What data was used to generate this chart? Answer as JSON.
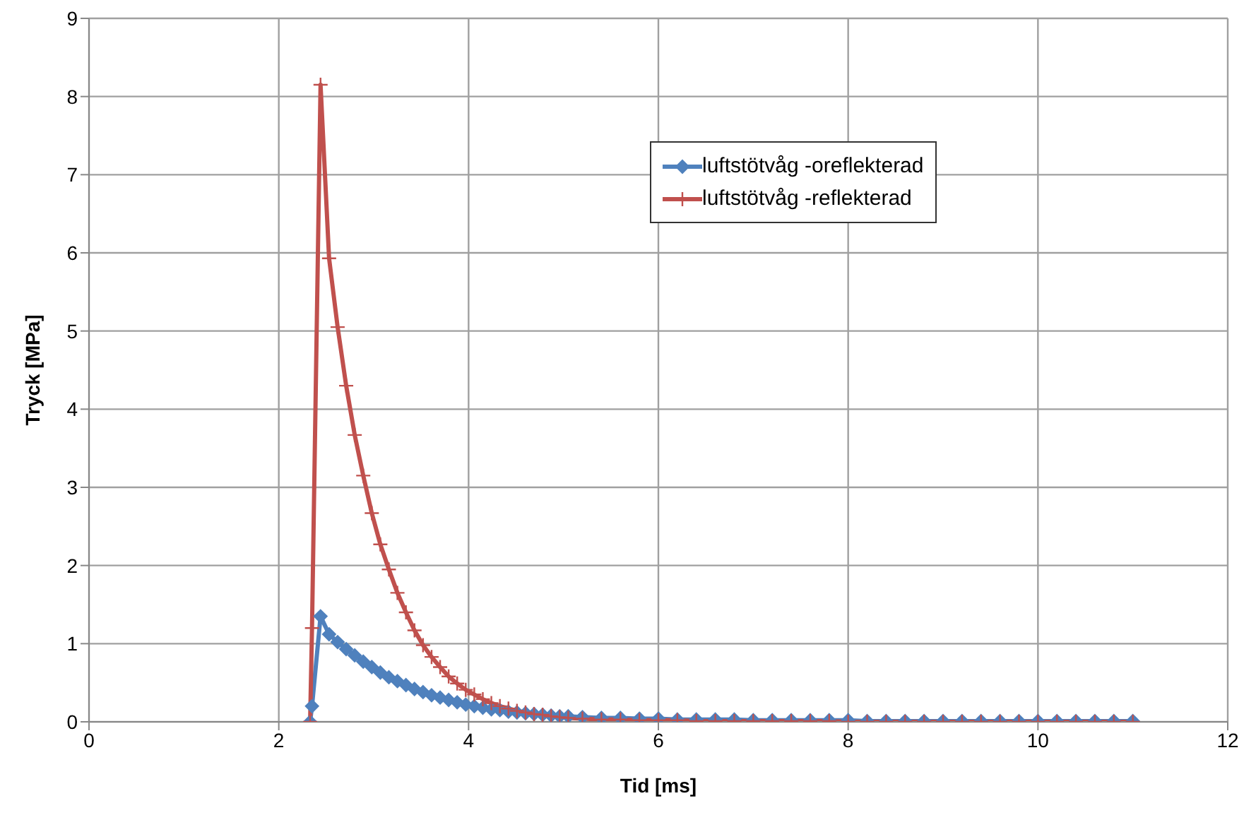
{
  "chart_data": {
    "type": "line",
    "xlabel": "Tid [ms]",
    "ylabel": "Tryck [MPa]",
    "xlim": [
      0,
      12
    ],
    "xticks": [
      0,
      2,
      4,
      6,
      8,
      10,
      12
    ],
    "ylim": [
      0,
      9
    ],
    "yticks": [
      0,
      1,
      2,
      3,
      4,
      5,
      6,
      7,
      8,
      9
    ],
    "grid": true,
    "legend": "top right",
    "line_style": "solid",
    "x": [
      2.33,
      2.35,
      2.44,
      2.53,
      2.62,
      2.71,
      2.8,
      2.89,
      2.98,
      3.07,
      3.16,
      3.25,
      3.34,
      3.43,
      3.52,
      3.61,
      3.7,
      3.79,
      3.88,
      3.97,
      4.06,
      4.15,
      4.24,
      4.33,
      4.42,
      4.51,
      4.6,
      4.69,
      4.78,
      4.87,
      4.96,
      5.05,
      5.2,
      5.4,
      5.6,
      5.8,
      6.0,
      6.2,
      6.4,
      6.6,
      6.8,
      7.0,
      7.2,
      7.4,
      7.6,
      7.8,
      8.0,
      8.2,
      8.4,
      8.6,
      8.8,
      9.0,
      9.2,
      9.4,
      9.6,
      9.8,
      10.0,
      10.2,
      10.4,
      10.6,
      10.8,
      11.0
    ],
    "series": [
      {
        "name": "luftstötvåg -oreflekterad",
        "color": "#4f81bd",
        "marker": "diamond",
        "values": [
          0,
          0.2,
          1.35,
          1.12,
          1.02,
          0.93,
          0.85,
          0.77,
          0.7,
          0.63,
          0.57,
          0.52,
          0.47,
          0.42,
          0.38,
          0.34,
          0.31,
          0.28,
          0.25,
          0.22,
          0.2,
          0.18,
          0.16,
          0.15,
          0.13,
          0.12,
          0.11,
          0.1,
          0.09,
          0.08,
          0.07,
          0.07,
          0.06,
          0.05,
          0.05,
          0.04,
          0.04,
          0.03,
          0.03,
          0.03,
          0.03,
          0.02,
          0.02,
          0.02,
          0.02,
          0.02,
          0.02,
          0.01,
          0.01,
          0.01,
          0.01,
          0.01,
          0.01,
          0.01,
          0.01,
          0.01,
          0.01,
          0.01,
          0.01,
          0.01,
          0.01,
          0.01
        ]
      },
      {
        "name": "luftstötvåg -reflekterad",
        "color": "#c0504d",
        "marker": "cross",
        "values": [
          0,
          1.2,
          8.15,
          5.93,
          5.05,
          4.3,
          3.67,
          3.15,
          2.67,
          2.27,
          1.95,
          1.65,
          1.4,
          1.17,
          0.98,
          0.83,
          0.7,
          0.58,
          0.49,
          0.41,
          0.35,
          0.29,
          0.24,
          0.2,
          0.17,
          0.14,
          0.12,
          0.1,
          0.09,
          0.07,
          0.06,
          0.05,
          0.04,
          0.03,
          0.03,
          0.02,
          0.02,
          0.02,
          0.01,
          0.01,
          0.01,
          0.01,
          0.01,
          0.01,
          0.01,
          0.01,
          0,
          0,
          0,
          0,
          0,
          0,
          0,
          0,
          0,
          0,
          0,
          0,
          0,
          0,
          0,
          0
        ]
      }
    ]
  }
}
